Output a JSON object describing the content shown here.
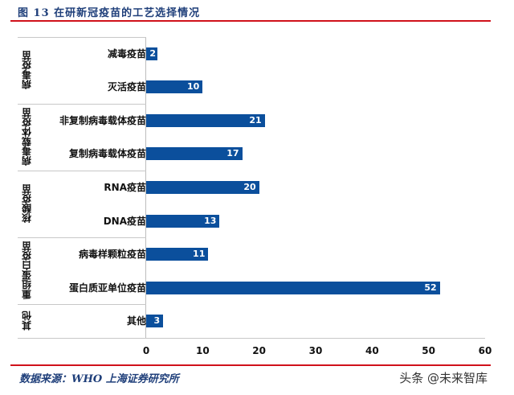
{
  "header": {
    "title": "图 13 在研新冠疫苗的工艺选择情况"
  },
  "footer": {
    "source": "数据来源：WHO  上海证券研究所",
    "watermark": "头条 @未来智库"
  },
  "colors": {
    "bar": "#0b4f9c",
    "rule": "#d0111b",
    "title": "#1f3f7a"
  },
  "chart_data": {
    "type": "bar",
    "orientation": "horizontal",
    "title": "图 13 在研新冠疫苗的工艺选择情况",
    "xlabel": "",
    "ylabel": "",
    "xlim": [
      0,
      60
    ],
    "xticks": [
      "0",
      "10",
      "20",
      "30",
      "40",
      "50",
      "60"
    ],
    "grid": false,
    "legend": null,
    "groups": [
      {
        "name": "病毒疫苗",
        "categories": [
          "减毒疫苗",
          "灭活疫苗"
        ]
      },
      {
        "name": "病毒载体疫苗",
        "categories": [
          "非复制病毒载体疫苗",
          "复制病毒载体疫苗"
        ]
      },
      {
        "name": "核酸疫苗",
        "categories": [
          "RNA疫苗",
          "DNA疫苗"
        ]
      },
      {
        "name": "重组蛋白疫苗",
        "categories": [
          "病毒样颗粒疫苗",
          "蛋白质亚单位疫苗"
        ]
      },
      {
        "name": "其他",
        "categories": [
          "其他"
        ]
      }
    ],
    "categories": [
      "减毒疫苗",
      "灭活疫苗",
      "非复制病毒载体疫苗",
      "复制病毒载体疫苗",
      "RNA疫苗",
      "DNA疫苗",
      "病毒样颗粒疫苗",
      "蛋白质亚单位疫苗",
      "其他"
    ],
    "values": [
      2,
      10,
      21,
      17,
      20,
      13,
      11,
      52,
      3
    ],
    "value_labels": [
      "2",
      "10",
      "21",
      "17",
      "20",
      "13",
      "11",
      "52",
      "3"
    ],
    "source": "数据来源：WHO  上海证券研究所"
  }
}
